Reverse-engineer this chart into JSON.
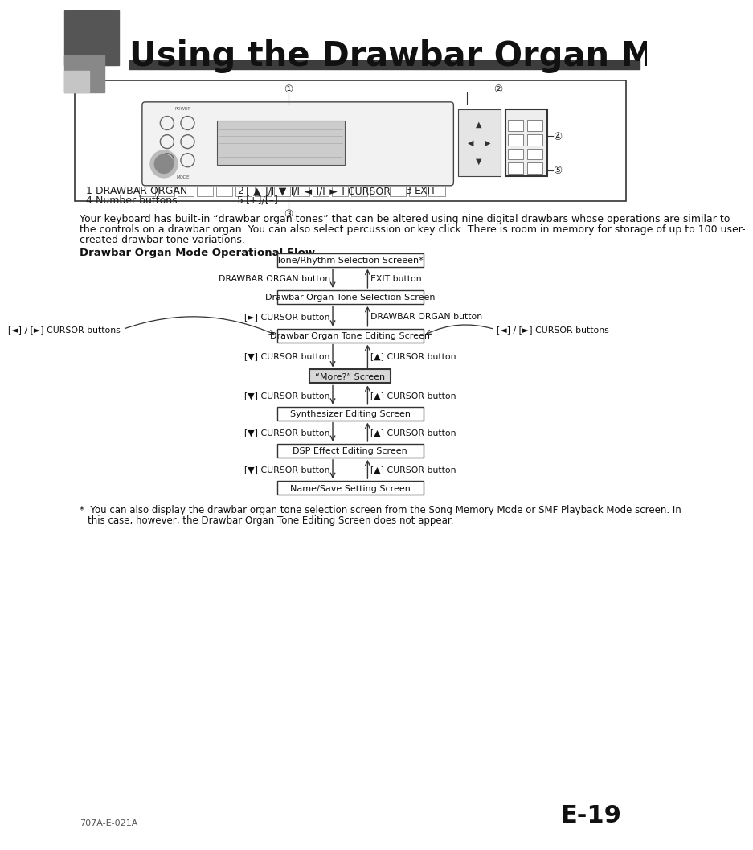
{
  "title": "Using the Drawbar Organ Mode",
  "page_num": "E-19",
  "footer_left": "707A-E-021A",
  "bg_color": "#ffffff",
  "header_bar_color": "#4a4a4a",
  "body_text_lines": [
    "Your keyboard has built-in “drawbar organ tones” that can be altered using nine digital drawbars whose operations are similar to",
    "the controls on a drawbar organ. You can also select percussion or key click. There is room in memory for storage of up to 100 user-",
    "created drawbar tone variations."
  ],
  "flow_title": "Drawbar Organ Mode Operational Flow",
  "footnote_line1": "*  You can also display the drawbar organ tone selection screen from the Song Memory Mode or SMF Playback Mode screen. In",
  "footnote_line2": "   this case, however, the Drawbar Organ Tone Editing Screen does not appear.",
  "legend_row1_num1": "1",
  "legend_row1_text1": "DRAWBAR ORGAN",
  "legend_row1_num2": "2",
  "legend_row1_text2": "[ ▲ ]/[ ▼ ]/[ ◄ ]/[ ► ] CURSOR",
  "legend_row1_num3": "3",
  "legend_row1_text3": "EXIT",
  "legend_row2_num1": "4",
  "legend_row2_text1": "Number buttons",
  "legend_row2_num2": "5",
  "legend_row2_text2": "[+]/[–]"
}
